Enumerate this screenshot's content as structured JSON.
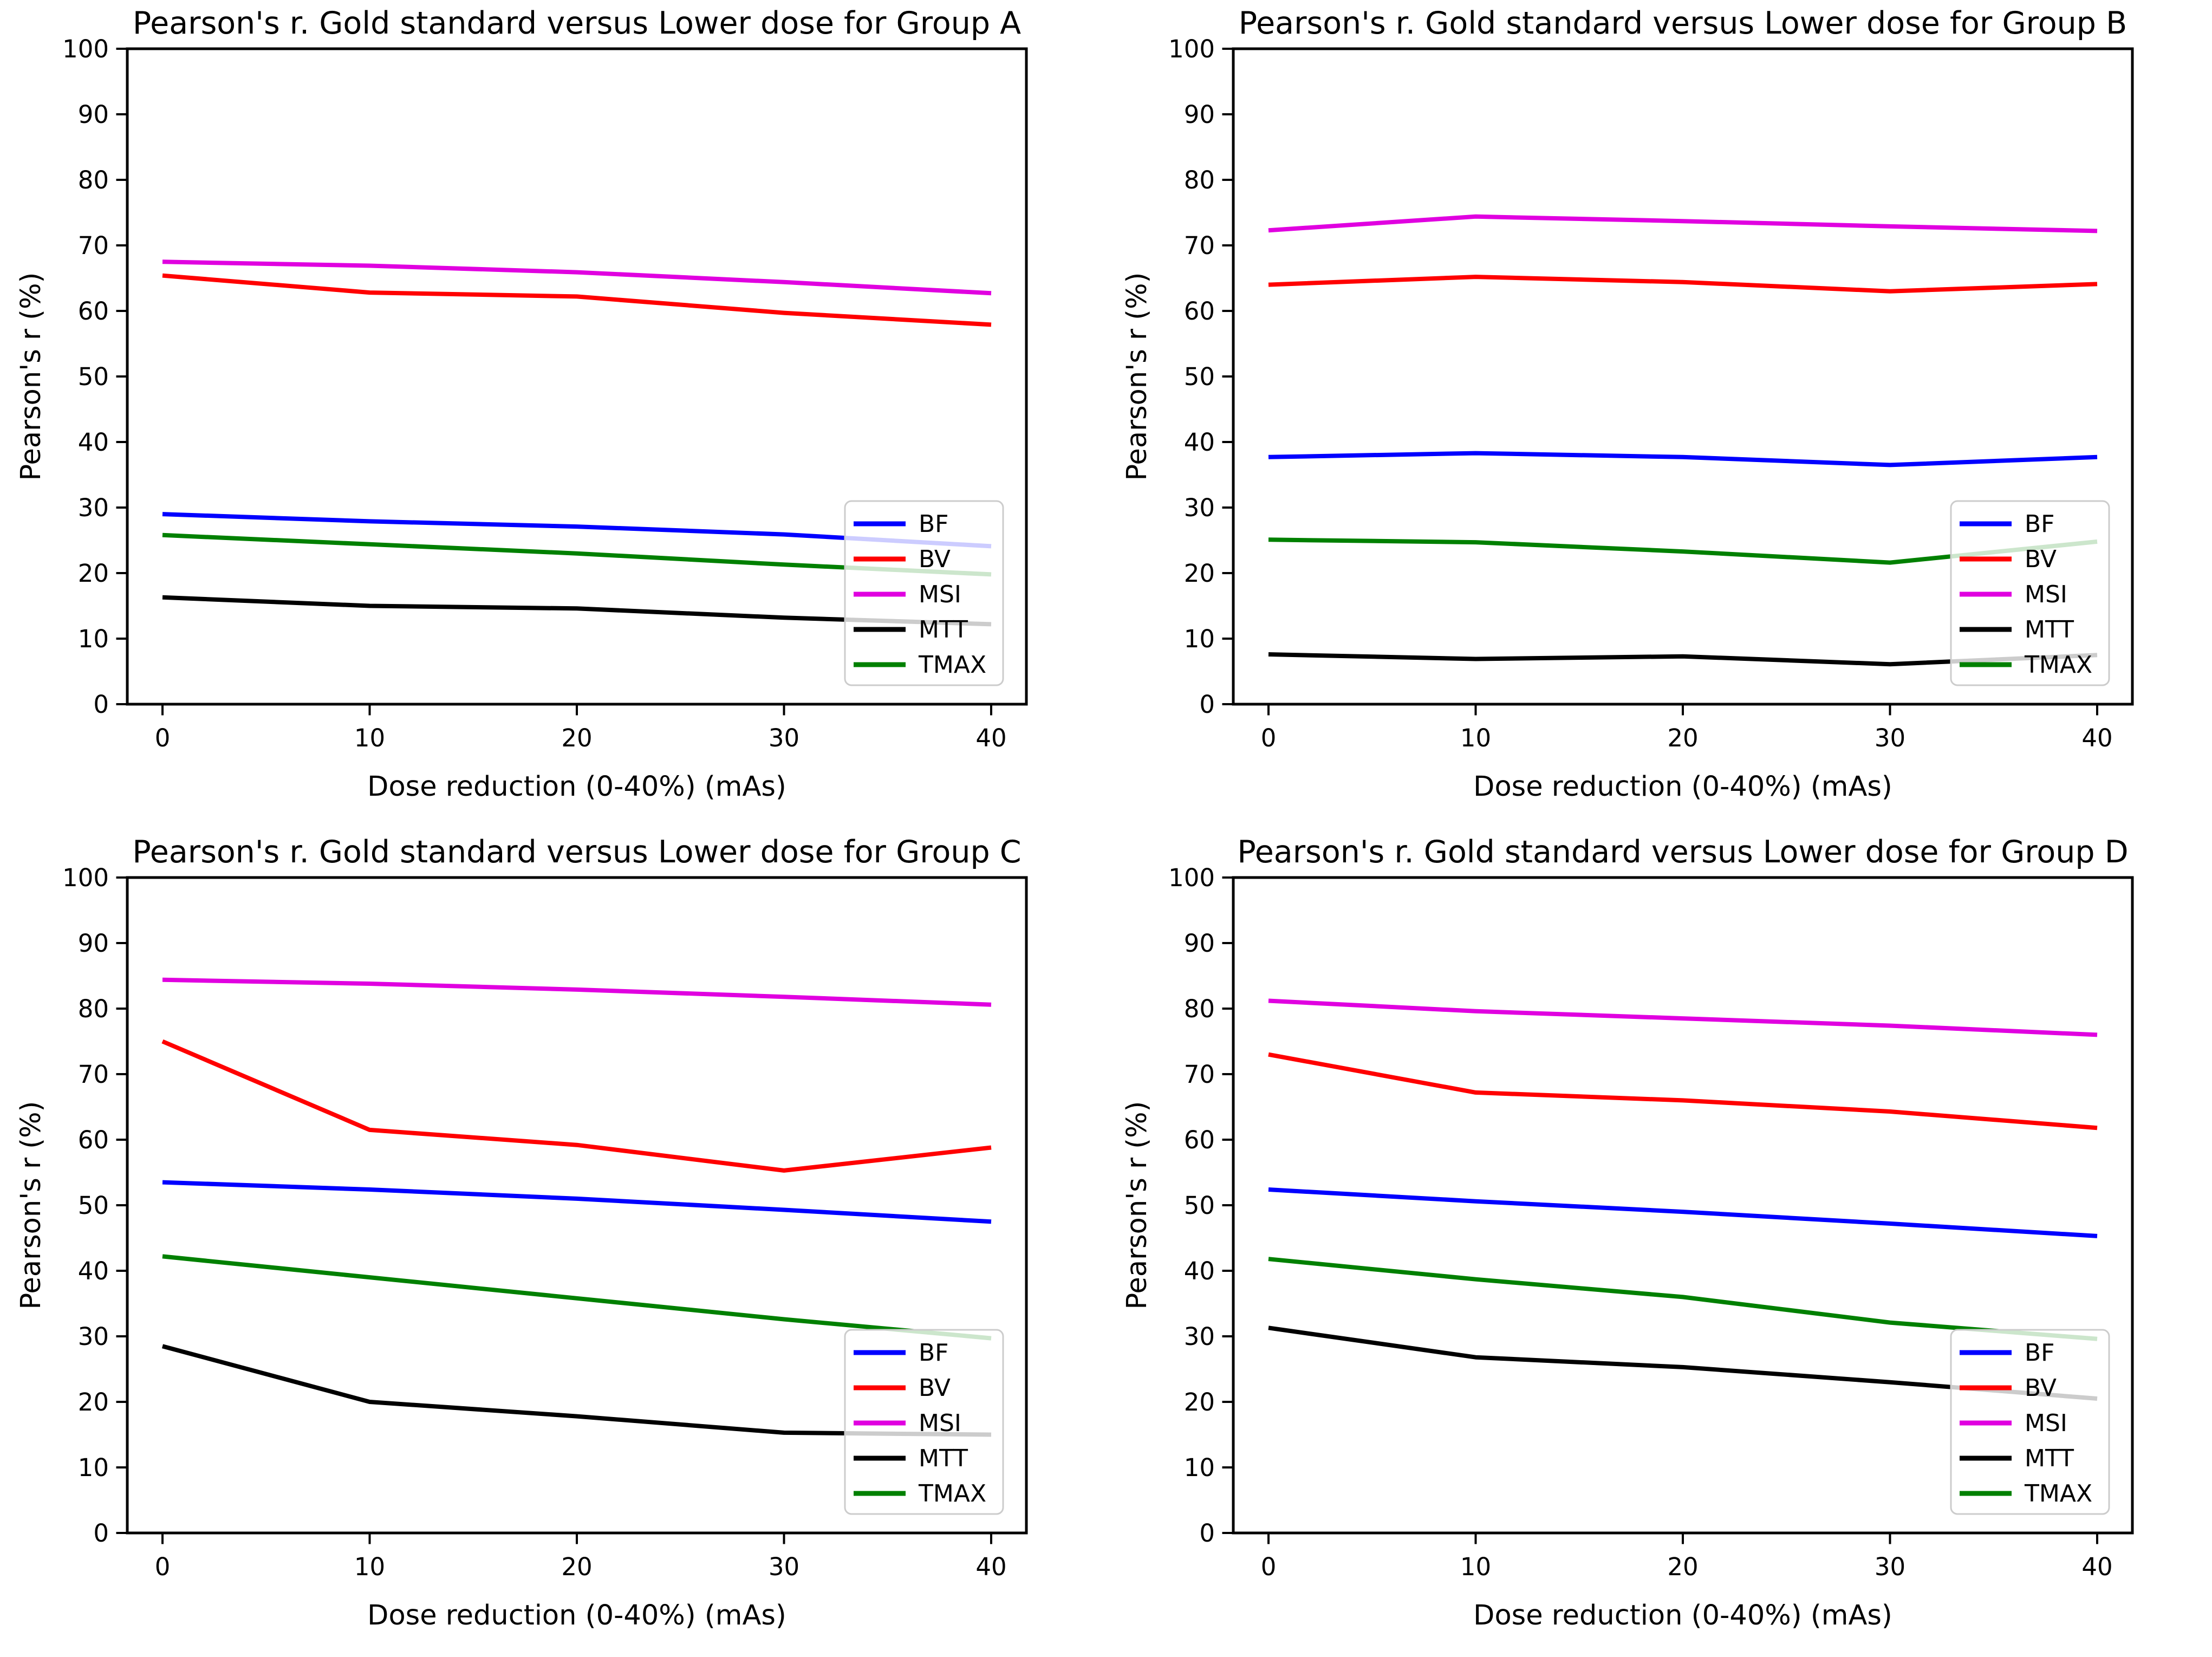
{
  "page": {
    "background_color": "#ffffff",
    "layout": "2x2 grid of line charts"
  },
  "chart_data": [
    {
      "type": "line",
      "group": "A",
      "title": "Pearson's r. Gold standard versus Lower dose for Group A",
      "xlabel": "Dose reduction (0-40%) (mAs)",
      "ylabel": "Pearson's r (%)",
      "x": [
        0,
        10,
        20,
        30,
        40
      ],
      "xticks": [
        0,
        10,
        20,
        30,
        40
      ],
      "yticks": [
        0,
        10,
        20,
        30,
        40,
        50,
        60,
        70,
        80,
        90,
        100
      ],
      "xlim": [
        -1.7,
        41.7
      ],
      "ylim": [
        0,
        100
      ],
      "grid": false,
      "legend_position": "lower right",
      "series": [
        {
          "name": "BF",
          "color": "#0000ff",
          "values": [
            29.0,
            27.9,
            27.1,
            25.9,
            24.1
          ]
        },
        {
          "name": "BV",
          "color": "#ff0000",
          "values": [
            65.4,
            62.8,
            62.2,
            59.7,
            57.9
          ]
        },
        {
          "name": "MSI",
          "color": "#e000e0",
          "values": [
            67.5,
            66.9,
            65.9,
            64.4,
            62.7
          ]
        },
        {
          "name": "MTT",
          "color": "#000000",
          "values": [
            16.3,
            15.0,
            14.6,
            13.2,
            12.2
          ]
        },
        {
          "name": "TMAX",
          "color": "#008000",
          "values": [
            25.8,
            24.4,
            23.0,
            21.3,
            19.8
          ]
        }
      ]
    },
    {
      "type": "line",
      "group": "B",
      "title": "Pearson's r. Gold standard versus Lower dose for Group B",
      "xlabel": "Dose reduction (0-40%) (mAs)",
      "ylabel": "Pearson's r (%)",
      "x": [
        0,
        10,
        20,
        30,
        40
      ],
      "xticks": [
        0,
        10,
        20,
        30,
        40
      ],
      "yticks": [
        0,
        10,
        20,
        30,
        40,
        50,
        60,
        70,
        80,
        90,
        100
      ],
      "xlim": [
        -1.7,
        41.7
      ],
      "ylim": [
        0,
        100
      ],
      "grid": false,
      "legend_position": "lower right",
      "series": [
        {
          "name": "BF",
          "color": "#0000ff",
          "values": [
            37.7,
            38.3,
            37.7,
            36.5,
            37.7
          ]
        },
        {
          "name": "BV",
          "color": "#ff0000",
          "values": [
            64.0,
            65.2,
            64.4,
            63.0,
            64.1
          ]
        },
        {
          "name": "MSI",
          "color": "#e000e0",
          "values": [
            72.3,
            74.4,
            73.7,
            72.9,
            72.2
          ]
        },
        {
          "name": "MTT",
          "color": "#000000",
          "values": [
            7.6,
            6.9,
            7.3,
            6.1,
            7.5
          ]
        },
        {
          "name": "TMAX",
          "color": "#008000",
          "values": [
            25.1,
            24.7,
            23.3,
            21.6,
            24.8
          ]
        }
      ]
    },
    {
      "type": "line",
      "group": "C",
      "title": "Pearson's r. Gold standard versus Lower dose for Group C",
      "xlabel": "Dose reduction (0-40%) (mAs)",
      "ylabel": "Pearson's r (%)",
      "x": [
        0,
        10,
        20,
        30,
        40
      ],
      "xticks": [
        0,
        10,
        20,
        30,
        40
      ],
      "yticks": [
        0,
        10,
        20,
        30,
        40,
        50,
        60,
        70,
        80,
        90,
        100
      ],
      "xlim": [
        -1.7,
        41.7
      ],
      "ylim": [
        0,
        100
      ],
      "grid": false,
      "legend_position": "lower right",
      "series": [
        {
          "name": "BF",
          "color": "#0000ff",
          "values": [
            53.5,
            52.4,
            51.0,
            49.3,
            47.5
          ]
        },
        {
          "name": "BV",
          "color": "#ff0000",
          "values": [
            75.0,
            61.5,
            59.2,
            55.3,
            58.8
          ]
        },
        {
          "name": "MSI",
          "color": "#e000e0",
          "values": [
            84.4,
            83.8,
            82.9,
            81.8,
            80.6
          ]
        },
        {
          "name": "MTT",
          "color": "#000000",
          "values": [
            28.5,
            20.0,
            17.8,
            15.3,
            15.0
          ]
        },
        {
          "name": "TMAX",
          "color": "#008000",
          "values": [
            42.2,
            39.0,
            35.8,
            32.6,
            29.7
          ]
        }
      ]
    },
    {
      "type": "line",
      "group": "D",
      "title": "Pearson's r. Gold standard versus Lower dose for Group D",
      "xlabel": "Dose reduction (0-40%) (mAs)",
      "ylabel": "Pearson's r (%)",
      "x": [
        0,
        10,
        20,
        30,
        40
      ],
      "xticks": [
        0,
        10,
        20,
        30,
        40
      ],
      "yticks": [
        0,
        10,
        20,
        30,
        40,
        50,
        60,
        70,
        80,
        90,
        100
      ],
      "xlim": [
        -1.7,
        41.7
      ],
      "ylim": [
        0,
        100
      ],
      "grid": false,
      "legend_position": "lower right",
      "series": [
        {
          "name": "BF",
          "color": "#0000ff",
          "values": [
            52.4,
            50.6,
            49.0,
            47.2,
            45.3
          ]
        },
        {
          "name": "BV",
          "color": "#ff0000",
          "values": [
            73.0,
            67.2,
            66.0,
            64.3,
            61.8
          ]
        },
        {
          "name": "MSI",
          "color": "#e000e0",
          "values": [
            81.2,
            79.6,
            78.5,
            77.4,
            76.0
          ]
        },
        {
          "name": "MTT",
          "color": "#000000",
          "values": [
            31.3,
            26.8,
            25.3,
            23.0,
            20.5
          ]
        },
        {
          "name": "TMAX",
          "color": "#008000",
          "values": [
            41.8,
            38.7,
            36.0,
            32.1,
            29.6
          ]
        }
      ]
    }
  ]
}
